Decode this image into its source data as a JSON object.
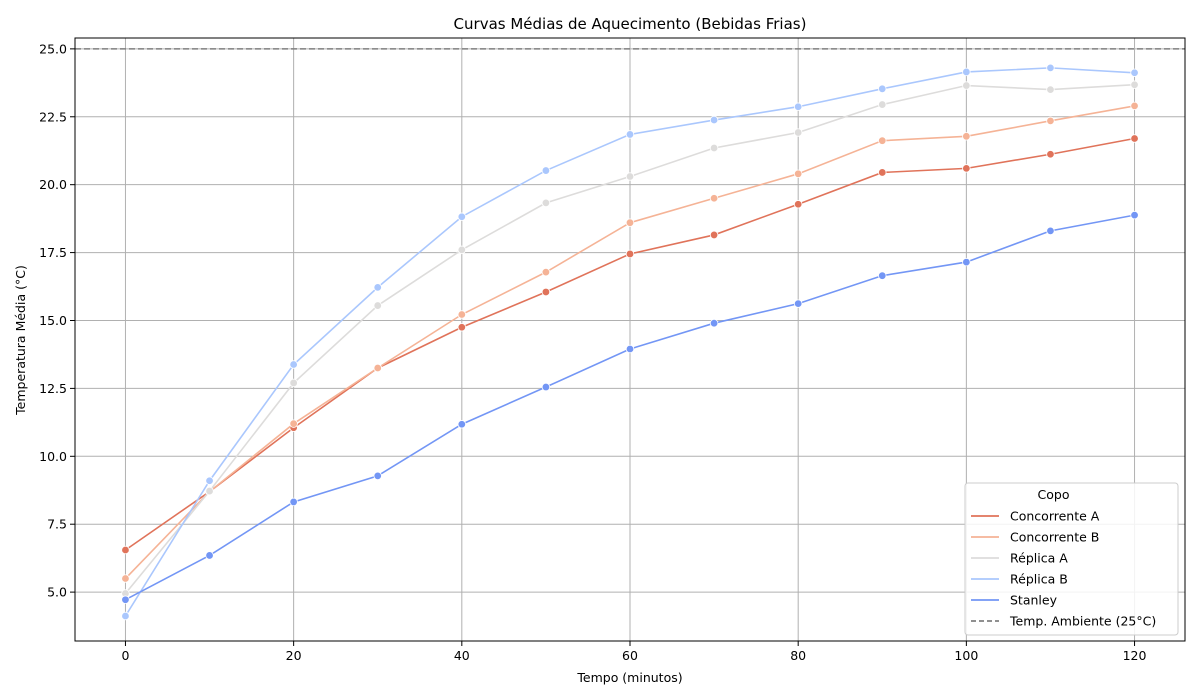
{
  "chart_data": {
    "type": "line",
    "title": "Curvas Médias de Aquecimento (Bebidas Frias)",
    "xlabel": "Tempo (minutos)",
    "ylabel": "Temperatura Média (°C)",
    "xlim": [
      -6,
      126
    ],
    "ylim": [
      3.2,
      25.4
    ],
    "x_ticks": [
      0,
      20,
      40,
      60,
      80,
      100,
      120
    ],
    "x_tick_labels": [
      "0",
      "20",
      "40",
      "60",
      "80",
      "100",
      "120"
    ],
    "y_ticks": [
      5.0,
      7.5,
      10.0,
      12.5,
      15.0,
      17.5,
      20.0,
      22.5,
      25.0
    ],
    "y_tick_labels": [
      "5.0",
      "7.5",
      "10.0",
      "12.5",
      "15.0",
      "17.5",
      "20.0",
      "22.5",
      "25.0"
    ],
    "grid": true,
    "x": [
      0,
      10,
      20,
      30,
      40,
      50,
      60,
      70,
      80,
      90,
      100,
      110,
      120
    ],
    "series": [
      {
        "name": "Concorrente A",
        "color": "#e0735a",
        "values": [
          6.55,
          8.7,
          11.05,
          13.25,
          14.75,
          16.05,
          17.45,
          18.15,
          19.28,
          20.45,
          20.6,
          21.12,
          21.7
        ]
      },
      {
        "name": "Concorrente B",
        "color": "#f5b396",
        "values": [
          5.5,
          8.7,
          11.2,
          13.25,
          15.22,
          16.78,
          18.6,
          19.5,
          20.4,
          21.62,
          21.78,
          22.35,
          22.9
        ]
      },
      {
        "name": "Réplica A",
        "color": "#dddcdb",
        "values": [
          4.95,
          8.72,
          12.7,
          15.55,
          17.6,
          19.33,
          20.3,
          21.35,
          21.92,
          22.95,
          23.65,
          23.5,
          23.68
        ]
      },
      {
        "name": "Réplica B",
        "color": "#aac7fd",
        "values": [
          4.12,
          9.1,
          13.38,
          16.22,
          18.82,
          20.52,
          21.85,
          22.38,
          22.87,
          23.53,
          24.15,
          24.3,
          24.12
        ]
      },
      {
        "name": "Stanley",
        "color": "#7396f5",
        "values": [
          4.72,
          6.35,
          8.32,
          9.28,
          11.18,
          12.55,
          13.95,
          14.9,
          15.62,
          16.65,
          17.15,
          18.3,
          18.88
        ]
      }
    ],
    "reference_line": {
      "name": "Temp. Ambiente (25°C)",
      "y": 25.0,
      "color": "#808080",
      "style": "dashed"
    },
    "legend": {
      "title": "Copo",
      "placement": "lower-right"
    }
  }
}
